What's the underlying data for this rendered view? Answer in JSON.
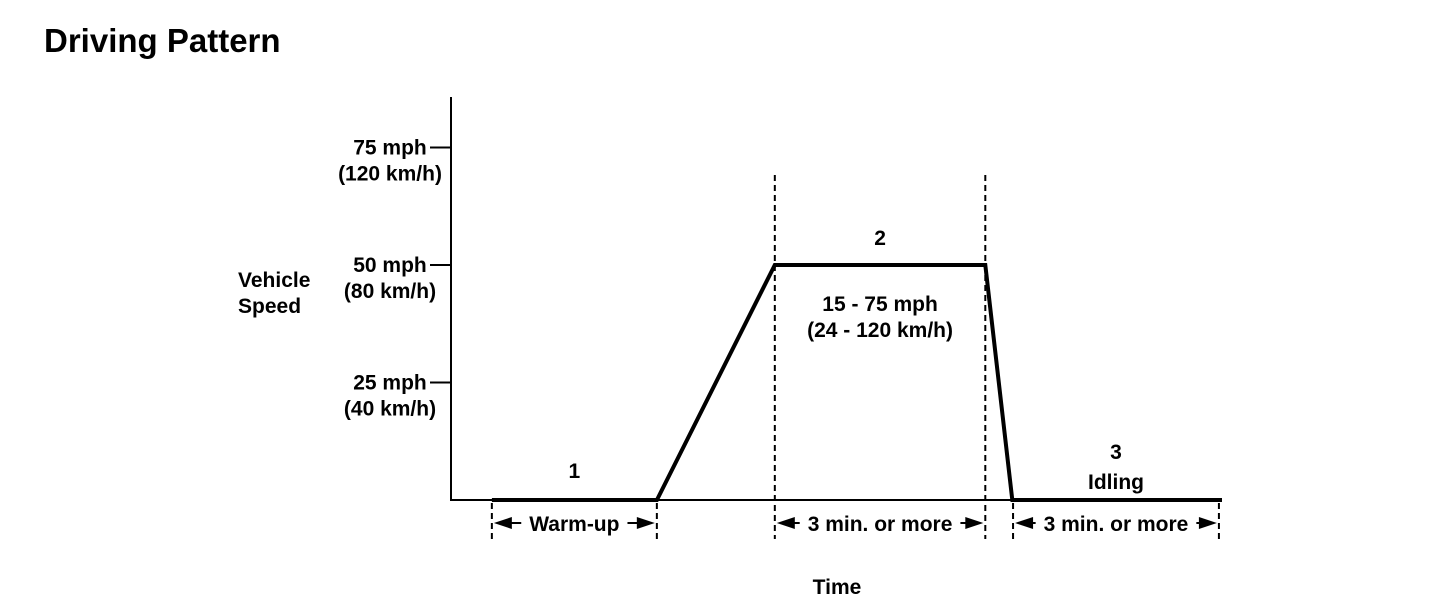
{
  "header": {
    "title": "Driving Pattern"
  },
  "colors": {
    "foreground": "#000000",
    "background": "#ffffff"
  },
  "chart_data": {
    "type": "line",
    "title": "Driving Pattern",
    "xlabel": "Time",
    "ylabel": "Vehicle Speed",
    "ylabel_lines": [
      "Vehicle",
      "Speed"
    ],
    "x_axis_qualitative": true,
    "ylim_mph": [
      0,
      85
    ],
    "grid": false,
    "y_ticks": [
      {
        "mph": 75,
        "label": "75 mph",
        "metric_label": "(120 km/h)"
      },
      {
        "mph": 50,
        "label": "50 mph",
        "metric_label": "(80 km/h)"
      },
      {
        "mph": 25,
        "label": "25 mph",
        "metric_label": "(40 km/h)"
      }
    ],
    "series": [
      {
        "name": "vehicle-speed",
        "color": "#000000",
        "points": [
          {
            "t": 5.3,
            "mph": 0
          },
          {
            "t": 26.7,
            "mph": 0
          },
          {
            "t": 42.0,
            "mph": 50
          },
          {
            "t": 69.3,
            "mph": 50
          },
          {
            "t": 72.8,
            "mph": 0
          },
          {
            "t": 100.0,
            "mph": 0
          }
        ]
      }
    ],
    "phases": [
      {
        "number": "1",
        "t_start": 5.3,
        "t_end": 26.7,
        "interval_label": "Warm-up",
        "guide": "short"
      },
      {
        "number": "2",
        "t_start": 42.0,
        "t_end": 69.3,
        "interval_label": "3 min. or more",
        "range_label": "15 - 75 mph",
        "range_metric_label": "(24 - 120 km/h)",
        "guide": "tall"
      },
      {
        "number": "3",
        "t_start": 72.9,
        "t_end": 99.6,
        "interval_label": "3 min. or more",
        "name_label": "Idling",
        "guide": "short"
      }
    ]
  }
}
